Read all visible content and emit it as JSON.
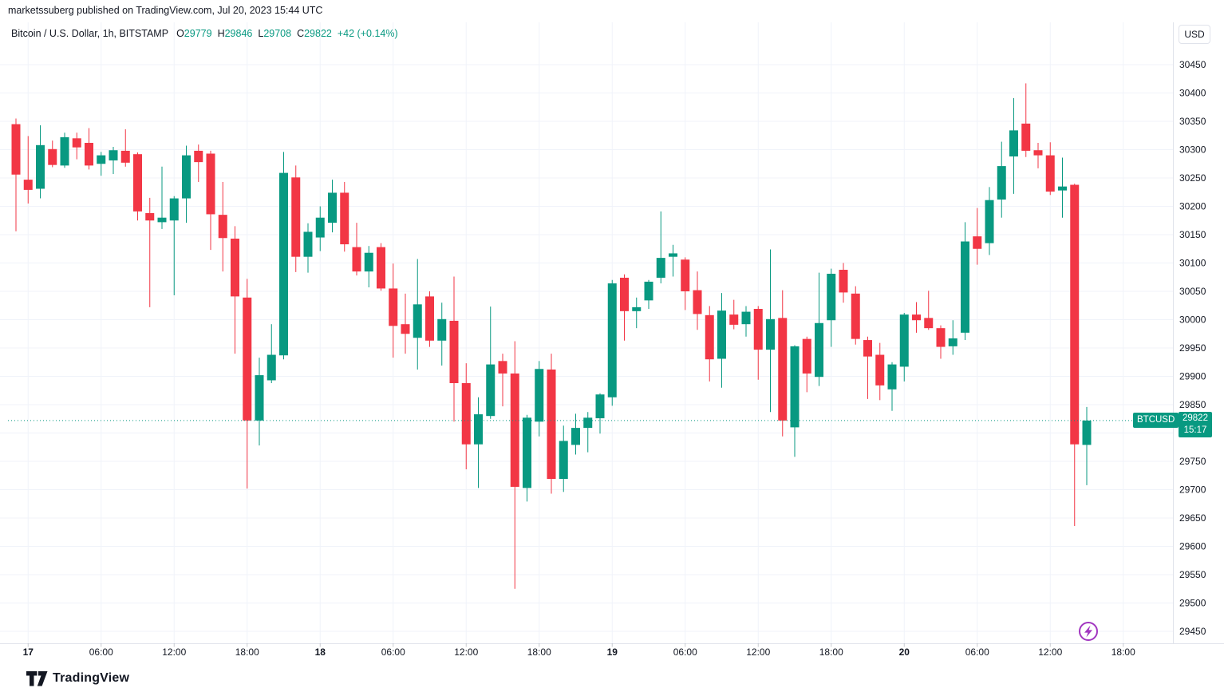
{
  "header": {
    "published_line": "marketssuberg published on TradingView.com, Jul 20, 2023 15:44 UTC"
  },
  "toolbar": {
    "currency_button": "USD"
  },
  "legend": {
    "symbol_title": "Bitcoin / U.S. Dollar, 1h, BITSTAMP",
    "ohlc": [
      {
        "label": "O",
        "value": "29779"
      },
      {
        "label": "H",
        "value": "29846"
      },
      {
        "label": "L",
        "value": "29708"
      },
      {
        "label": "C",
        "value": "29822"
      }
    ],
    "change": "+42 (+0.14%)"
  },
  "price_scale": {
    "ticks": [
      "30450",
      "30400",
      "30350",
      "30300",
      "30250",
      "30200",
      "30150",
      "30100",
      "30050",
      "30000",
      "29950",
      "29900",
      "29850",
      "29750",
      "29700",
      "29650",
      "29600",
      "29550",
      "29500",
      "29450"
    ],
    "price_label": {
      "symbol": "BTCUSD",
      "price": "29822",
      "time": "15:17"
    }
  },
  "time_scale": {
    "ticks": [
      {
        "label": "17",
        "index": 1,
        "bold": true
      },
      {
        "label": "06:00",
        "index": 7,
        "bold": false
      },
      {
        "label": "12:00",
        "index": 13,
        "bold": false
      },
      {
        "label": "18:00",
        "index": 19,
        "bold": false
      },
      {
        "label": "18",
        "index": 25,
        "bold": true
      },
      {
        "label": "06:00",
        "index": 31,
        "bold": false
      },
      {
        "label": "12:00",
        "index": 37,
        "bold": false
      },
      {
        "label": "18:00",
        "index": 43,
        "bold": false
      },
      {
        "label": "19",
        "index": 49,
        "bold": true
      },
      {
        "label": "06:00",
        "index": 55,
        "bold": false
      },
      {
        "label": "12:00",
        "index": 61,
        "bold": false
      },
      {
        "label": "18:00",
        "index": 67,
        "bold": false
      },
      {
        "label": "20",
        "index": 73,
        "bold": true
      },
      {
        "label": "06:00",
        "index": 79,
        "bold": false
      },
      {
        "label": "12:00",
        "index": 85,
        "bold": false
      },
      {
        "label": "18:00",
        "index": 91,
        "bold": false
      }
    ]
  },
  "footer": {
    "brand": "TradingView"
  },
  "colors": {
    "up": "#089981",
    "down": "#F23645",
    "grid": "#F0F3FA",
    "border": "#E0E3EB",
    "text": "#131722",
    "tick": "#B2B5BE",
    "accent_purple": "#A135C0"
  },
  "chart_data": {
    "type": "candlestick",
    "symbol": "BTCUSD",
    "exchange": "BITSTAMP",
    "interval": "1h",
    "y_axis": {
      "min": 29450,
      "max": 30450,
      "step": 50
    },
    "price_line": {
      "price": 29822,
      "time": "15:17"
    },
    "ohlc_note": "candles ordered left to right, one per hour, format [open,high,low,close]",
    "candles": [
      [
        30345,
        30355,
        30156,
        30256
      ],
      [
        30247,
        30324,
        30205,
        30229
      ],
      [
        30231,
        30343,
        30214,
        30308
      ],
      [
        30301,
        30316,
        30269,
        30273
      ],
      [
        30272,
        30330,
        30268,
        30322
      ],
      [
        30320,
        30330,
        30283,
        30304
      ],
      [
        30312,
        30338,
        30265,
        30272
      ],
      [
        30275,
        30296,
        30254,
        30290
      ],
      [
        30281,
        30305,
        30257,
        30299
      ],
      [
        30298,
        30336,
        30270,
        30277
      ],
      [
        30292,
        30295,
        30175,
        30191
      ],
      [
        30188,
        30215,
        30022,
        30175
      ],
      [
        30172,
        30270,
        30160,
        30180
      ],
      [
        30175,
        30218,
        30043,
        30214
      ],
      [
        30214,
        30307,
        30171,
        30290
      ],
      [
        30298,
        30309,
        30243,
        30278
      ],
      [
        30293,
        30298,
        30123,
        30186
      ],
      [
        30185,
        30243,
        30085,
        30144
      ],
      [
        30143,
        30165,
        29940,
        30041
      ],
      [
        30039,
        30072,
        29702,
        29822
      ],
      [
        29822,
        29933,
        29778,
        29902
      ],
      [
        29893,
        29992,
        29888,
        29938
      ],
      [
        29937,
        30296,
        29930,
        30259
      ],
      [
        30251,
        30272,
        30084,
        30111
      ],
      [
        30111,
        30170,
        30083,
        30155
      ],
      [
        30145,
        30200,
        30121,
        30180
      ],
      [
        30171,
        30247,
        30154,
        30224
      ],
      [
        30224,
        30243,
        30120,
        30133
      ],
      [
        30128,
        30171,
        30078,
        30085
      ],
      [
        30085,
        30130,
        30057,
        30118
      ],
      [
        30128,
        30135,
        30051,
        30055
      ],
      [
        30055,
        30099,
        29933,
        29989
      ],
      [
        29992,
        30046,
        29940,
        29975
      ],
      [
        29968,
        30107,
        29912,
        30027
      ],
      [
        30041,
        30050,
        29952,
        29963
      ],
      [
        29963,
        30030,
        29919,
        30001
      ],
      [
        29998,
        30076,
        29820,
        29888
      ],
      [
        29888,
        29923,
        29736,
        29780
      ],
      [
        29780,
        29863,
        29703,
        29833
      ],
      [
        29830,
        30023,
        29825,
        29921
      ],
      [
        29927,
        29940,
        29847,
        29905
      ],
      [
        29905,
        29962,
        29525,
        29705
      ],
      [
        29703,
        29832,
        29679,
        29827
      ],
      [
        29820,
        29927,
        29794,
        29913
      ],
      [
        29912,
        29940,
        29693,
        29719
      ],
      [
        29719,
        29813,
        29696,
        29786
      ],
      [
        29779,
        29834,
        29762,
        29809
      ],
      [
        29809,
        29837,
        29766,
        29827
      ],
      [
        29826,
        29870,
        29799,
        29868
      ],
      [
        29863,
        30070,
        29848,
        30064
      ],
      [
        30074,
        30080,
        29963,
        30015
      ],
      [
        30015,
        30039,
        29985,
        30022
      ],
      [
        30034,
        30070,
        30019,
        30067
      ],
      [
        30074,
        30191,
        30064,
        30109
      ],
      [
        30111,
        30132,
        30076,
        30117
      ],
      [
        30106,
        30110,
        30017,
        30050
      ],
      [
        30052,
        30085,
        29982,
        30010
      ],
      [
        30008,
        30024,
        29891,
        29930
      ],
      [
        29931,
        30047,
        29880,
        30016
      ],
      [
        30009,
        30035,
        29983,
        29991
      ],
      [
        29992,
        30024,
        29970,
        30014
      ],
      [
        30019,
        30024,
        29894,
        29947
      ],
      [
        29947,
        30124,
        29837,
        30001
      ],
      [
        30003,
        30052,
        29794,
        29822
      ],
      [
        29810,
        29955,
        29758,
        29953
      ],
      [
        29966,
        29970,
        29872,
        29905
      ],
      [
        29899,
        30083,
        29883,
        29994
      ],
      [
        29999,
        30090,
        29952,
        30081
      ],
      [
        30088,
        30100,
        30030,
        30048
      ],
      [
        30046,
        30059,
        29956,
        29966
      ],
      [
        29964,
        29970,
        29860,
        29935
      ],
      [
        29938,
        29959,
        29858,
        29884
      ],
      [
        29877,
        29925,
        29839,
        29921
      ],
      [
        29917,
        30012,
        29891,
        30009
      ],
      [
        30009,
        30031,
        29977,
        29999
      ],
      [
        30003,
        30051,
        29982,
        29985
      ],
      [
        29985,
        29990,
        29931,
        29952
      ],
      [
        29953,
        29999,
        29938,
        29967
      ],
      [
        29977,
        30172,
        29964,
        30138
      ],
      [
        30147,
        30197,
        30097,
        30125
      ],
      [
        30135,
        30234,
        30114,
        30211
      ],
      [
        30212,
        30314,
        30180,
        30271
      ],
      [
        30288,
        30391,
        30222,
        30334
      ],
      [
        30346,
        30417,
        30287,
        30298
      ],
      [
        30299,
        30312,
        30267,
        30290
      ],
      [
        30290,
        30313,
        30220,
        30226
      ],
      [
        30228,
        30286,
        30180,
        30235
      ],
      [
        30238,
        30240,
        29636,
        29780
      ],
      [
        29779,
        29846,
        29708,
        29822
      ]
    ]
  }
}
